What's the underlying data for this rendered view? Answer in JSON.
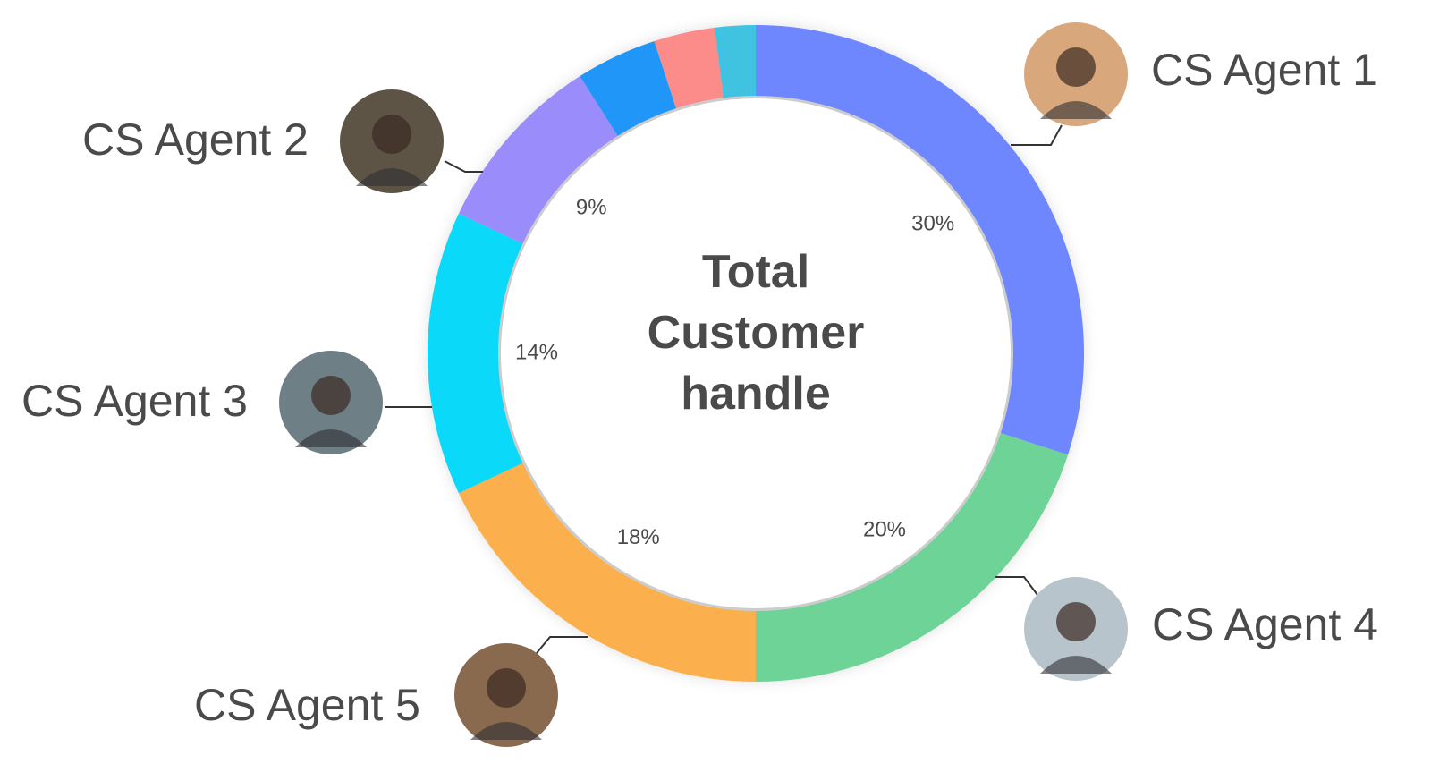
{
  "chart_data": {
    "type": "donut",
    "title": "Total Customer handle",
    "categories": [
      "CS Agent 1",
      "CS Agent 4",
      "CS Agent 5",
      "CS Agent 3",
      "CS Agent 2",
      null,
      null,
      null
    ],
    "values": [
      30,
      20,
      18,
      14,
      9,
      4,
      3,
      2
    ],
    "value_labels": [
      "30%",
      "20%",
      "18%",
      "14%",
      "9%",
      null,
      null,
      null
    ],
    "colors": [
      "#6e86fe",
      "#6dd396",
      "#fbb04d",
      "#0ad9f9",
      "#9b8cfb",
      "#2196f9",
      "#fb8c8a",
      "#40c3e0"
    ]
  }
}
